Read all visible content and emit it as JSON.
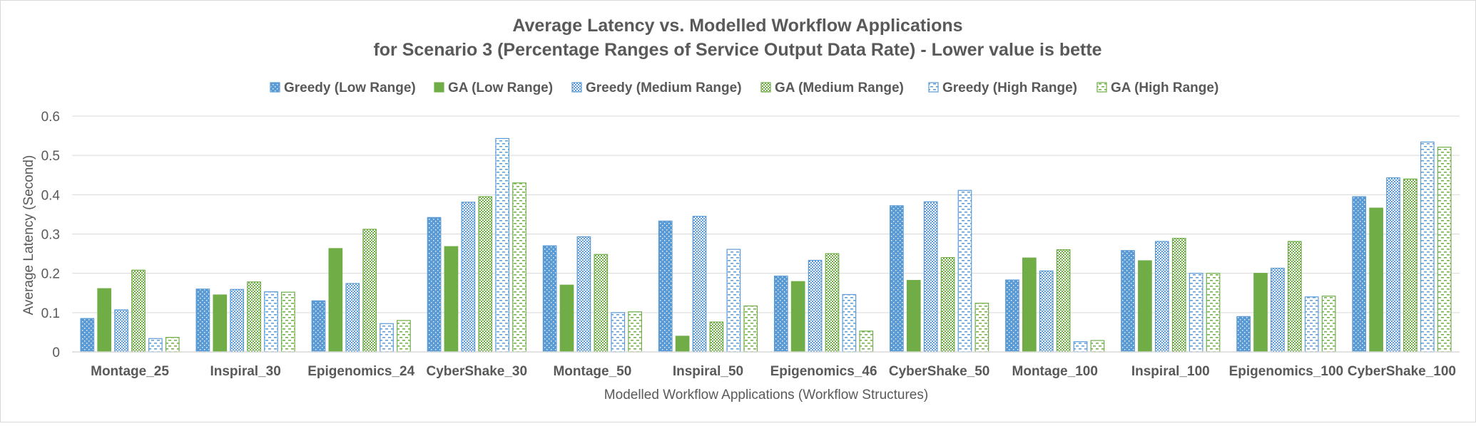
{
  "chart_data": {
    "type": "bar",
    "title": "Average Latency vs. Modelled Workflow Applications",
    "subtitle": "for Scenario 3 (Percentage Ranges of Service Output Data Rate) - Lower value is bette",
    "xlabel": "Modelled Workflow Applications (Workflow Structures)",
    "ylabel": "Average Latency (Second)",
    "ylim": [
      0,
      0.6
    ],
    "yticks": [
      "0",
      "0.1",
      "0.2",
      "0.3",
      "0.4",
      "0.5",
      "0.6"
    ],
    "grid": true,
    "legend_position": "top",
    "categories": [
      "Montage_25",
      "Inspiral_30",
      "Epigenomics_24",
      "CyberShake_30",
      "Montage_50",
      "Inspiral_50",
      "Epigenomics_46",
      "CyberShake_50",
      "Montage_100",
      "Inspiral_100",
      "Epigenomics_100",
      "CyberShake_100"
    ],
    "series": [
      {
        "name": "Greedy (Low Range)",
        "color": "#5b9bd5",
        "pattern": "dots",
        "values": [
          0.085,
          0.16,
          0.13,
          0.342,
          0.27,
          0.333,
          0.193,
          0.372,
          0.183,
          0.258,
          0.09,
          0.395
        ]
      },
      {
        "name": "GA (Low Range)",
        "color": "#70ad47",
        "pattern": "solid",
        "values": [
          0.161,
          0.145,
          0.263,
          0.268,
          0.17,
          0.04,
          0.179,
          0.182,
          0.239,
          0.232,
          0.2,
          0.366
        ]
      },
      {
        "name": "Greedy (Medium Range)",
        "color": "#5b9bd5",
        "pattern": "checker",
        "values": [
          0.107,
          0.159,
          0.174,
          0.381,
          0.293,
          0.345,
          0.233,
          0.382,
          0.206,
          0.281,
          0.213,
          0.443
        ]
      },
      {
        "name": "GA (Medium Range)",
        "color": "#70ad47",
        "pattern": "checker",
        "values": [
          0.208,
          0.178,
          0.312,
          0.395,
          0.248,
          0.076,
          0.25,
          0.24,
          0.26,
          0.289,
          0.281,
          0.44
        ]
      },
      {
        "name": "Greedy (High Range)",
        "color": "#5b9bd5",
        "pattern": "dash",
        "values": [
          0.034,
          0.153,
          0.072,
          0.543,
          0.1,
          0.261,
          0.146,
          0.411,
          0.026,
          0.2,
          0.14,
          0.534
        ]
      },
      {
        "name": "GA (High Range)",
        "color": "#70ad47",
        "pattern": "dash",
        "values": [
          0.037,
          0.152,
          0.08,
          0.43,
          0.102,
          0.117,
          0.053,
          0.124,
          0.029,
          0.2,
          0.142,
          0.521
        ]
      }
    ]
  }
}
